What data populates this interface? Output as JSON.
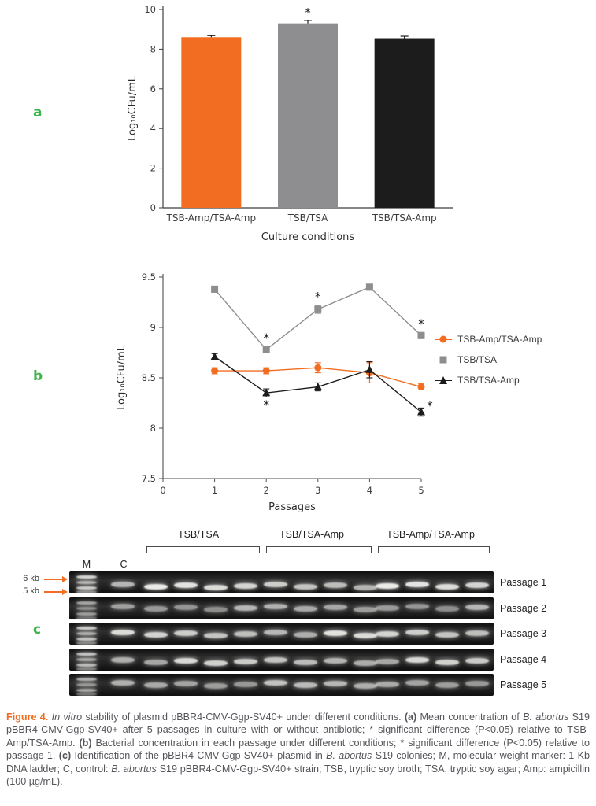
{
  "colors": {
    "panel_label_green": "#3cb44a",
    "accent_orange": "#f26d21",
    "series_orange": "#f26d21",
    "series_gray": "#8e8e90",
    "series_black": "#1c1c1c"
  },
  "panels": {
    "a": {
      "label": "a"
    },
    "b": {
      "label": "b"
    },
    "c": {
      "label": "c"
    }
  },
  "chart_data": [
    {
      "type": "bar",
      "panel": "a",
      "categories": [
        "TSB-Amp/TSA-Amp",
        "TSB/TSA",
        "TSB/TSA-Amp"
      ],
      "values": [
        8.6,
        9.3,
        8.55
      ],
      "errors": [
        0.08,
        0.15,
        0.1
      ],
      "annotations": [
        "",
        "*",
        ""
      ],
      "colors": [
        "#f26d21",
        "#8e8e90",
        "#1c1c1c"
      ],
      "title": "",
      "xlabel": "Culture conditions",
      "ylabel": "Log₁₀CFu/mL",
      "ylim": [
        0,
        10
      ],
      "yticks": [
        0,
        2,
        4,
        6,
        8,
        10
      ],
      "grid": false
    },
    {
      "type": "line",
      "panel": "b",
      "x": [
        1,
        2,
        3,
        4,
        5
      ],
      "xlim": [
        0,
        5
      ],
      "xticks": [
        0,
        1,
        2,
        3,
        4,
        5
      ],
      "ylim": [
        7.5,
        9.5
      ],
      "yticks": [
        7.5,
        8,
        8.5,
        9,
        9.5
      ],
      "xlabel": "Passages",
      "ylabel": "Log₁₀CFu/mL",
      "legend_position": "right",
      "grid": false,
      "series": [
        {
          "name": "TSB-Amp/TSA-Amp",
          "color": "#f26d21",
          "marker": "circle",
          "values": [
            8.57,
            8.57,
            8.6,
            8.55,
            8.41
          ],
          "errors": [
            0.03,
            0.03,
            0.05,
            0.1,
            0.03
          ],
          "annotations": [
            "",
            "",
            "",
            "",
            ""
          ],
          "annotation_side": [
            "",
            "",
            "",
            "",
            ""
          ]
        },
        {
          "name": "TSB/TSA",
          "color": "#8e8e90",
          "marker": "square",
          "values": [
            9.38,
            8.78,
            9.18,
            9.4,
            8.92
          ],
          "errors": [
            0.03,
            0.03,
            0.04,
            0.03,
            0.03
          ],
          "annotations": [
            "",
            "*",
            "*",
            "",
            "*"
          ],
          "annotation_side": [
            "",
            "above",
            "above",
            "",
            "above"
          ]
        },
        {
          "name": "TSB/TSA-Amp",
          "color": "#1c1c1c",
          "marker": "triangle",
          "values": [
            8.71,
            8.35,
            8.41,
            8.58,
            8.16
          ],
          "errors": [
            0.03,
            0.04,
            0.04,
            0.08,
            0.04
          ],
          "annotations": [
            "",
            "*",
            "",
            "",
            "*"
          ],
          "annotation_side": [
            "",
            "below",
            "",
            "",
            "right"
          ]
        }
      ]
    }
  ],
  "gel": {
    "group_labels": [
      "TSB/TSA",
      "TSB/TSA-Amp",
      "TSB-Amp/TSA-Amp"
    ],
    "lane_labels": [
      "M",
      "C"
    ],
    "marker_labels": [
      "6 kb",
      "5 kb"
    ],
    "row_labels": [
      "Passage 1",
      "Passage 2",
      "Passage 3",
      "Passage 4",
      "Passage 5"
    ],
    "lanes_per_group": 4
  },
  "caption": {
    "segments": [
      {
        "style": "label",
        "text": "Figure 4. "
      },
      {
        "style": "italic",
        "text": "In vitro"
      },
      {
        "style": "normal",
        "text": " stability of plasmid pBBR4-CMV-Ggp-SV40+ under different conditions. "
      },
      {
        "style": "bold",
        "text": "(a)"
      },
      {
        "style": "normal",
        "text": " Mean concentration of "
      },
      {
        "style": "italic",
        "text": "B. abortus"
      },
      {
        "style": "normal",
        "text": " S19 pBBR4-CMV-Ggp-SV40+ after 5 passages in culture with or without antibiotic; * significant difference (P<0.05) relative to TSB-Amp/TSA-Amp. "
      },
      {
        "style": "bold",
        "text": "(b)"
      },
      {
        "style": "normal",
        "text": " Bacterial concentration in each passage under different conditions; * significant difference (P<0.05) relative to passage 1. "
      },
      {
        "style": "bold",
        "text": "(c)"
      },
      {
        "style": "normal",
        "text": " Identification of the pBBR4-CMV-Ggp-SV40+ plasmid in "
      },
      {
        "style": "italic",
        "text": "B. abortus"
      },
      {
        "style": "normal",
        "text": " S19 colonies; M, molecular weight marker: 1 Kb DNA ladder; C, control: "
      },
      {
        "style": "italic",
        "text": "B. abortus"
      },
      {
        "style": "normal",
        "text": " S19 pBBR4-CMV-Ggp-SV40+ strain; TSB, tryptic soy broth; TSA, tryptic soy agar; Amp: ampicillin (100 µg/mL)."
      }
    ]
  }
}
